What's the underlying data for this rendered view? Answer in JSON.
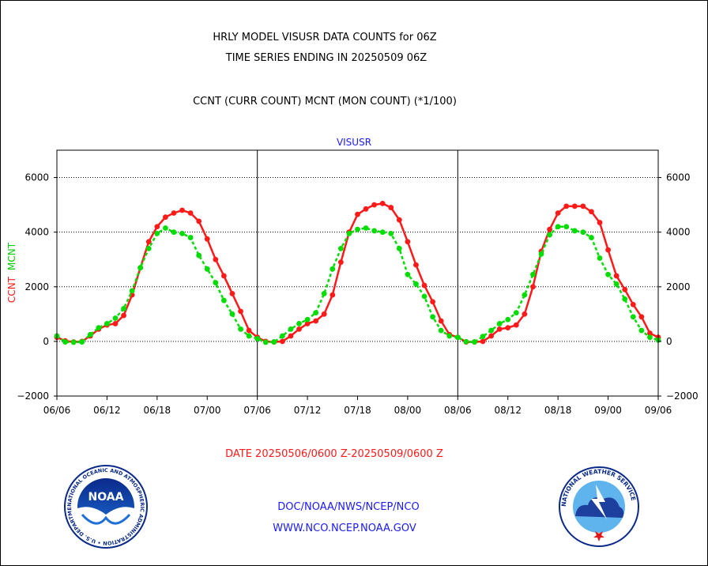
{
  "header": {
    "title_line1": "HRLY MODEL VISUSR DATA COUNTS for 06Z",
    "title_line2": "TIME SERIES ENDING IN 20250509 06Z",
    "subtitle": "CCNT (CURR COUNT) MCNT (MON COUNT) (*1/100)"
  },
  "colors": {
    "ccnt": "#ff1a1a",
    "mcnt": "#00dd00",
    "axis": "#000000",
    "footer_text": "#1a1aff"
  },
  "chart_data": {
    "type": "line",
    "title": "VISUSR",
    "ylabel_parts": [
      "CCNT",
      "MCNT"
    ],
    "ylim": [
      -2000,
      7000
    ],
    "yticks": [
      -2000,
      0,
      2000,
      4000,
      6000
    ],
    "xlim": [
      0,
      72
    ],
    "xtick_labels": [
      "06/06",
      "06/12",
      "06/18",
      "07/00",
      "07/06",
      "07/12",
      "07/18",
      "08/00",
      "08/06",
      "08/12",
      "08/18",
      "09/00",
      "09/06"
    ],
    "grid": "horizontal dotted at y ticks; vertical solid at day boundaries",
    "x": [
      0,
      1,
      2,
      3,
      4,
      5,
      6,
      7,
      8,
      9,
      10,
      11,
      12,
      13,
      14,
      15,
      16,
      17,
      18,
      19,
      20,
      21,
      22,
      23,
      24,
      25,
      26,
      27,
      28,
      29,
      30,
      31,
      32,
      33,
      34,
      35,
      36,
      37,
      38,
      39,
      40,
      41,
      42,
      43,
      44,
      45,
      46,
      47,
      48,
      49,
      50,
      51,
      52,
      53,
      54,
      55,
      56,
      57,
      58,
      59,
      60,
      61,
      62,
      63,
      64,
      65,
      66,
      67,
      68,
      69,
      70,
      71,
      72
    ],
    "series": [
      {
        "name": "CCNT",
        "color": "#ff1a1a",
        "style": "solid",
        "values": [
          150,
          20,
          -20,
          0,
          200,
          450,
          600,
          650,
          950,
          1700,
          2700,
          3650,
          4200,
          4550,
          4700,
          4800,
          4700,
          4400,
          3750,
          3000,
          2400,
          1750,
          1100,
          400,
          150,
          0,
          -20,
          0,
          200,
          450,
          650,
          750,
          1000,
          1700,
          2900,
          4000,
          4650,
          4850,
          5000,
          5050,
          4900,
          4450,
          3650,
          2800,
          2050,
          1450,
          750,
          250,
          150,
          -20,
          -20,
          0,
          200,
          450,
          500,
          600,
          1000,
          2000,
          3300,
          4100,
          4700,
          4950,
          4950,
          4950,
          4750,
          4350,
          3350,
          2400,
          1900,
          1350,
          900,
          300,
          150
        ]
      },
      {
        "name": "MCNT",
        "color": "#00dd00",
        "style": "dotted",
        "values": [
          200,
          -20,
          -30,
          -20,
          250,
          500,
          650,
          850,
          1200,
          1850,
          2700,
          3400,
          3950,
          4150,
          4000,
          3950,
          3800,
          3150,
          2650,
          2150,
          1500,
          1000,
          450,
          200,
          100,
          -30,
          -20,
          200,
          450,
          650,
          800,
          1050,
          1750,
          2650,
          3400,
          3950,
          4100,
          4150,
          4050,
          4000,
          3950,
          3400,
          2450,
          2100,
          1650,
          900,
          400,
          200,
          150,
          -10,
          -20,
          180,
          400,
          650,
          800,
          1050,
          1700,
          2450,
          3200,
          3900,
          4200,
          4200,
          4050,
          4000,
          3800,
          3050,
          2450,
          2100,
          1550,
          900,
          400,
          150,
          50
        ]
      }
    ]
  },
  "footer": {
    "date_range": "DATE 20250506/0600 Z-20250509/0600 Z",
    "org_line": "DOC/NOAA/NWS/NCEP/NCO",
    "website": "WWW.NCO.NCEP.NOAA.GOV"
  },
  "logos": {
    "left": {
      "name": "noaa-logo",
      "center_text": "NOAA",
      "ring_text": "NATIONAL OCEANIC AND ATMOSPHERIC ADMINISTRATION • U.S. DEPARTMENT OF COMMERCE"
    },
    "right": {
      "name": "nws-logo",
      "ring_text": "NATIONAL WEATHER SERVICE"
    }
  }
}
